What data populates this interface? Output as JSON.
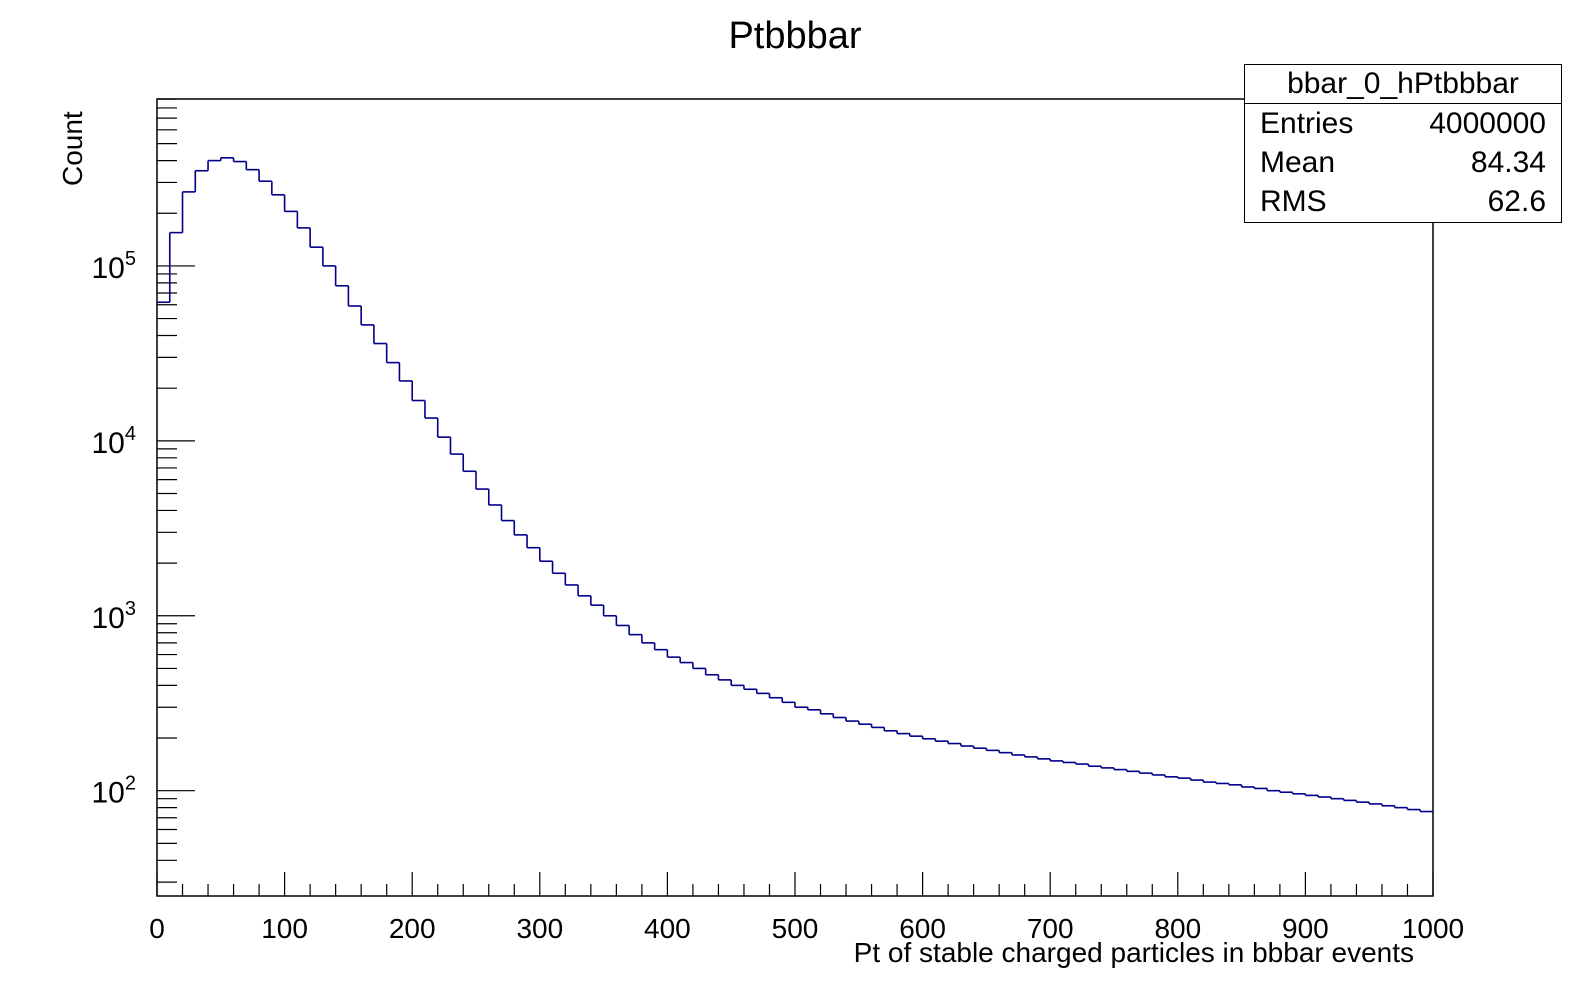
{
  "chart_data": {
    "type": "histogram",
    "title": "Ptbbbar",
    "xlabel": "Pt of stable charged particles in bbbar events",
    "ylabel": "Count",
    "xlim": [
      0,
      1000
    ],
    "ylim": [
      25,
      900000
    ],
    "y_scale": "log",
    "x_ticks": [
      "0",
      "100",
      "200",
      "300",
      "400",
      "500",
      "600",
      "700",
      "800",
      "900",
      "1000"
    ],
    "y_ticks": [
      {
        "base": "10",
        "exp": "2"
      },
      {
        "base": "10",
        "exp": "3"
      },
      {
        "base": "10",
        "exp": "4"
      },
      {
        "base": "10",
        "exp": "5"
      }
    ],
    "line_color": "#00008b",
    "bin_width": 10,
    "bin_edges_start": 0,
    "counts": [
      62000,
      155000,
      265000,
      350000,
      400000,
      415000,
      395000,
      355000,
      305000,
      255000,
      205000,
      165000,
      128000,
      100000,
      77000,
      59000,
      46000,
      36000,
      28000,
      22000,
      17000,
      13500,
      10500,
      8400,
      6700,
      5300,
      4300,
      3500,
      2900,
      2450,
      2050,
      1750,
      1500,
      1300,
      1150,
      1000,
      880,
      780,
      700,
      640,
      580,
      540,
      500,
      460,
      430,
      400,
      380,
      360,
      340,
      320,
      300,
      290,
      275,
      262,
      250,
      240,
      230,
      220,
      212,
      205,
      198,
      192,
      186,
      180,
      175,
      170,
      165,
      160,
      156,
      152,
      148,
      145,
      142,
      138,
      135,
      132,
      129,
      126,
      123,
      120,
      118,
      115,
      112,
      110,
      108,
      105,
      103,
      100,
      98,
      96,
      94,
      92,
      90,
      88,
      86,
      84,
      82,
      80,
      78,
      76
    ]
  },
  "stats_box": {
    "name": "bbar_0_hPtbbbar",
    "entries_label": "Entries",
    "entries_value": "4000000",
    "mean_label": "Mean",
    "mean_value": "84.34",
    "rms_label": "RMS",
    "rms_value": "62.6"
  }
}
